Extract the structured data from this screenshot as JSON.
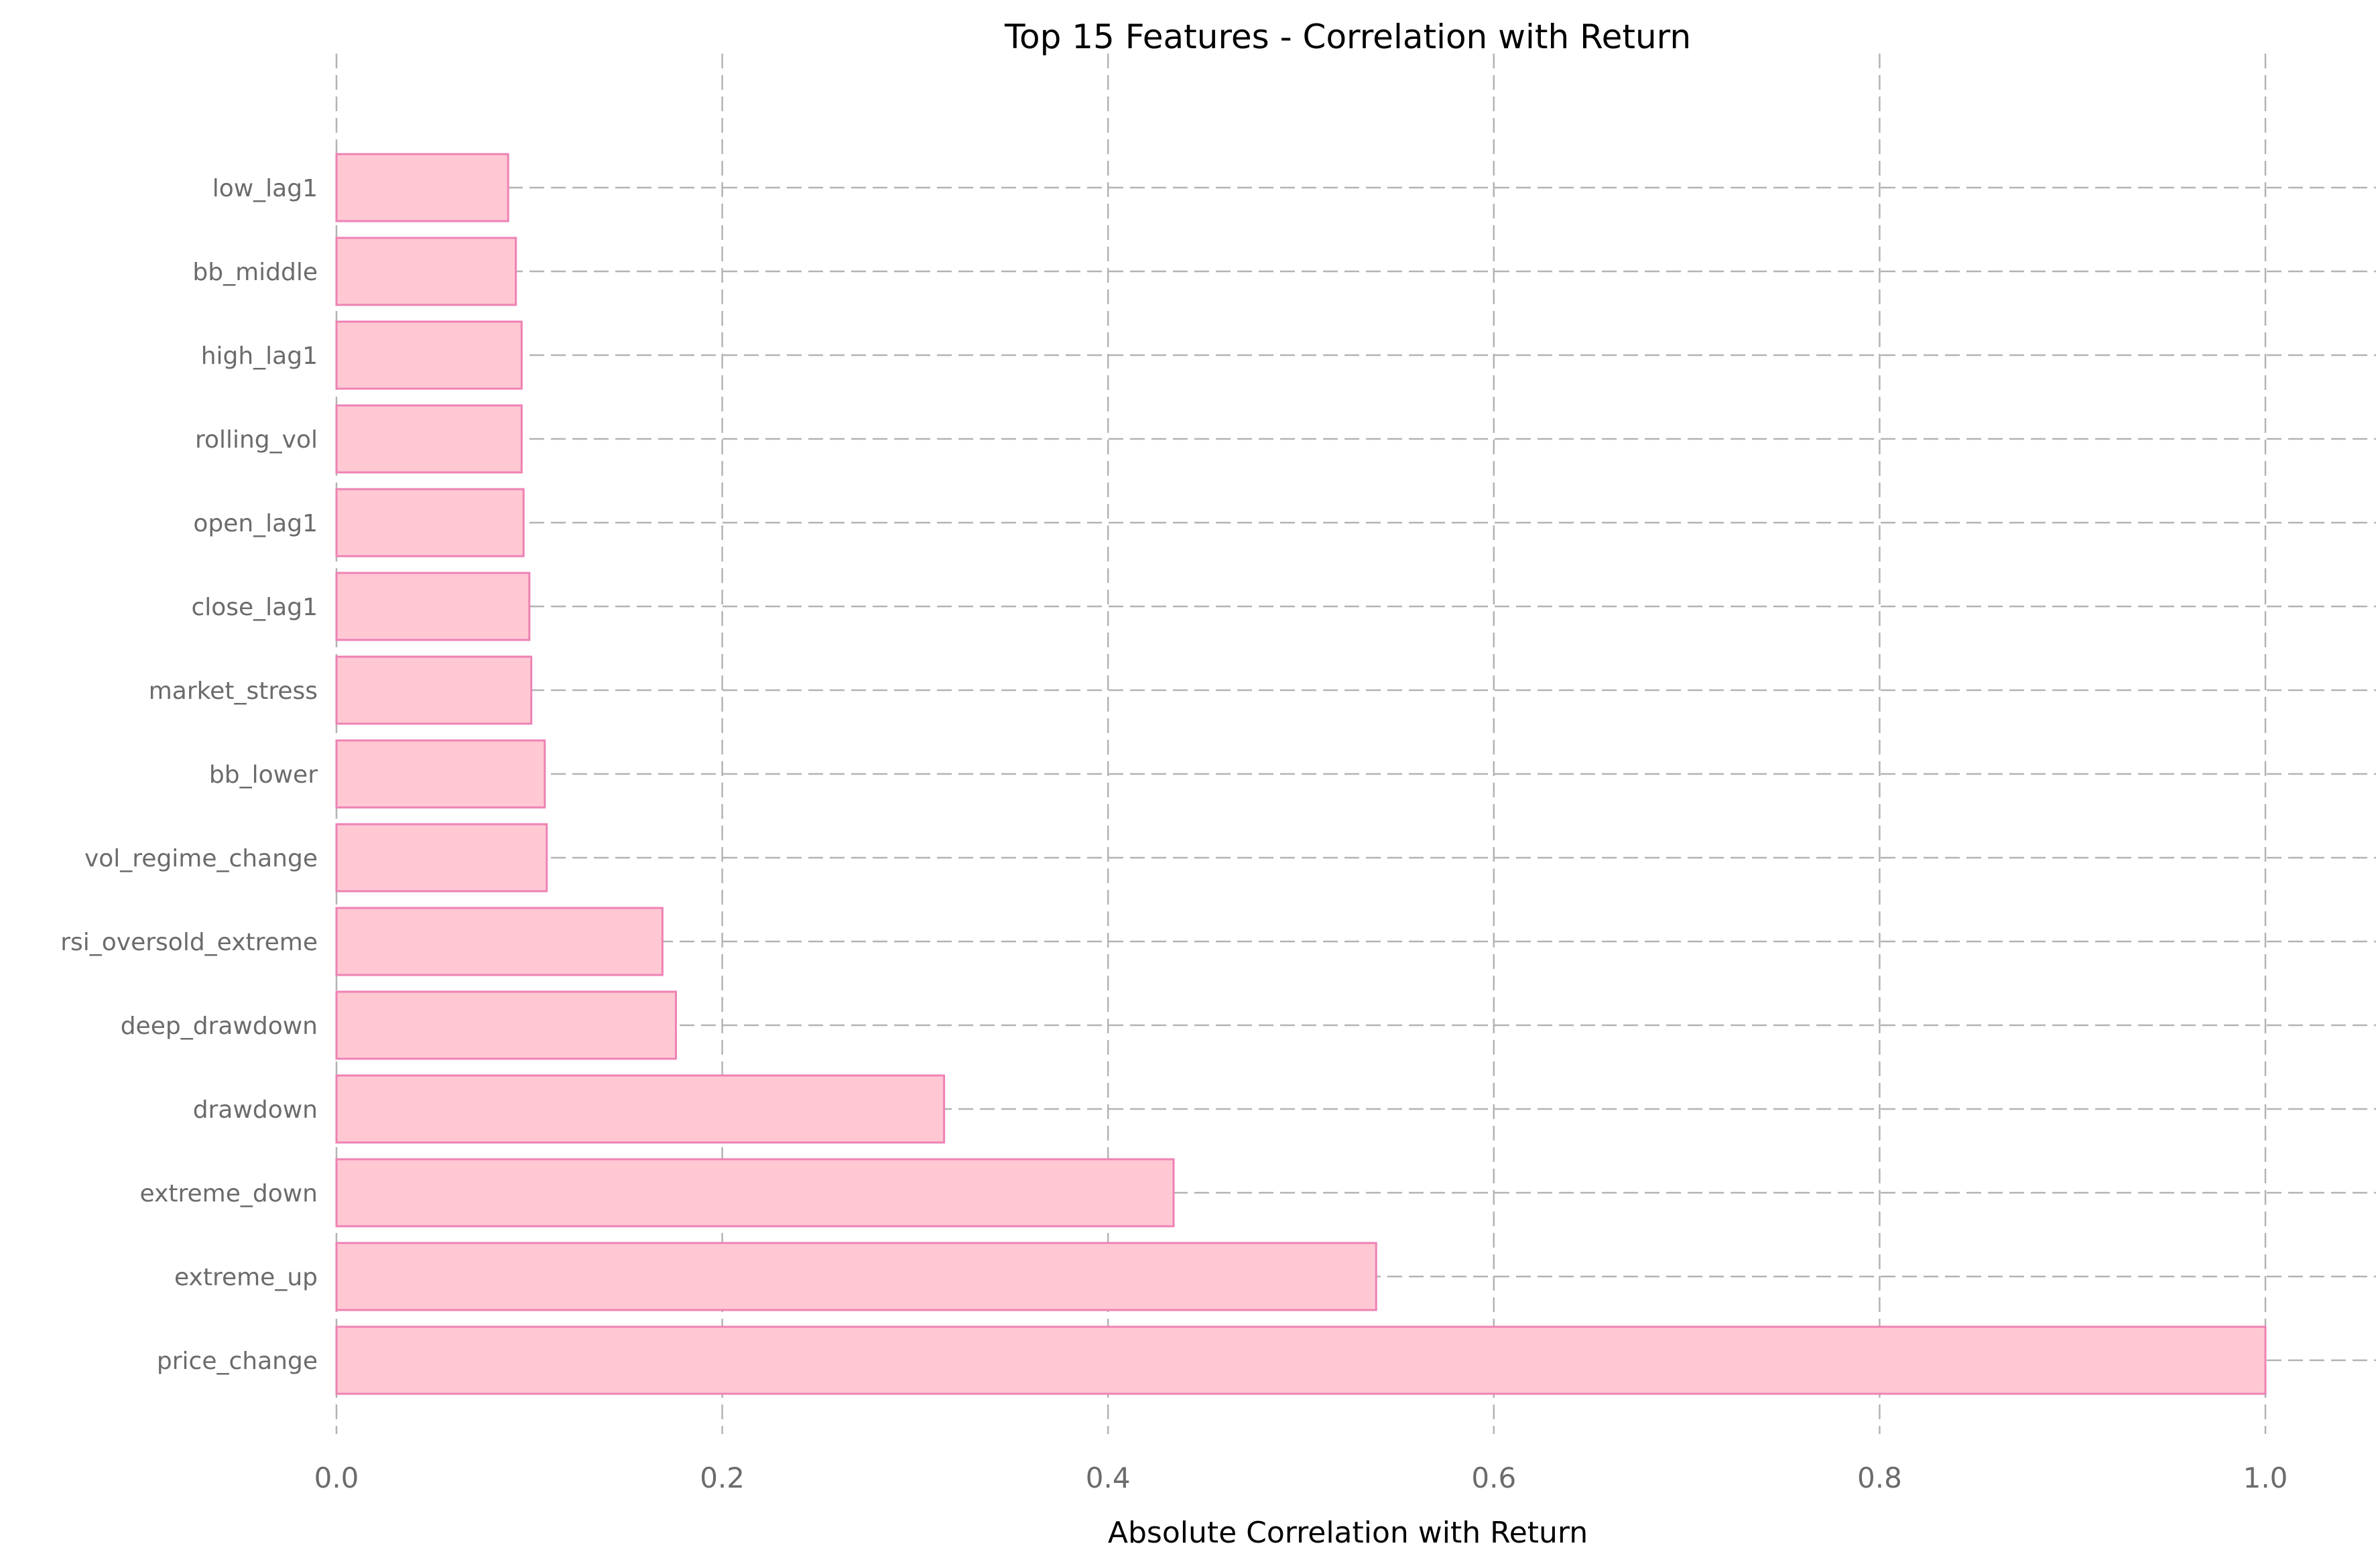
{
  "chart_data": {
    "type": "bar",
    "orientation": "horizontal",
    "title": "Top 15 Features - Correlation with Return",
    "xlabel": "Absolute Correlation with Return",
    "ylabel": "",
    "xlim": [
      0,
      1.05
    ],
    "xticks": [
      "0.0",
      "0.2",
      "0.4",
      "0.6",
      "0.8",
      "1.0"
    ],
    "grid": true,
    "categories": [
      "price_change",
      "extreme_up",
      "extreme_down",
      "drawdown",
      "deep_drawdown",
      "rsi_oversold_extreme",
      "vol_regime_change",
      "bb_lower",
      "market_stress",
      "close_lag1",
      "open_lag1",
      "rolling_vol",
      "high_lag1",
      "bb_middle",
      "low_lag1"
    ],
    "values": [
      1.0,
      0.539,
      0.434,
      0.315,
      0.176,
      0.169,
      0.109,
      0.108,
      0.101,
      0.1,
      0.097,
      0.096,
      0.096,
      0.093,
      0.089
    ],
    "colors": {
      "bar_fill": "#ffc8d3",
      "bar_edge": "#ee82b4",
      "grid": "#b3b3b3",
      "tick_text": "#6b6b6b"
    }
  }
}
